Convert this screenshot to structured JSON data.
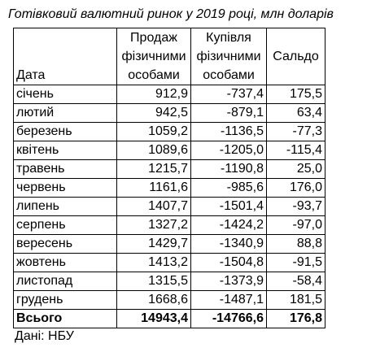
{
  "title": "Готівковий валютний ринок у 2019 році, млн доларів",
  "headers": {
    "date": "Дата",
    "sales": [
      "Продаж",
      "фізичними",
      "особами"
    ],
    "purchases": [
      "Купівля",
      "фізичними",
      "особами"
    ],
    "balance": "Сальдо"
  },
  "rows": [
    {
      "month": "січень",
      "sales": "912,9",
      "purchases": "-737,4",
      "balance": "175,5"
    },
    {
      "month": "лютий",
      "sales": "942,5",
      "purchases": "-879,1",
      "balance": "63,4"
    },
    {
      "month": "березень",
      "sales": "1059,2",
      "purchases": "-1136,5",
      "balance": "-77,3"
    },
    {
      "month": "квітень",
      "sales": "1089,6",
      "purchases": "-1205,0",
      "balance": "-115,4"
    },
    {
      "month": "травень",
      "sales": "1215,7",
      "purchases": "-1190,8",
      "balance": "25,0"
    },
    {
      "month": "червень",
      "sales": "1161,6",
      "purchases": "-985,6",
      "balance": "176,0"
    },
    {
      "month": "липень",
      "sales": "1407,7",
      "purchases": "-1501,4",
      "balance": "-93,7"
    },
    {
      "month": "серпень",
      "sales": "1327,2",
      "purchases": "-1424,2",
      "balance": "-97,0"
    },
    {
      "month": "вересень",
      "sales": "1429,7",
      "purchases": "-1340,9",
      "balance": "88,8"
    },
    {
      "month": "жовтень",
      "sales": "1413,2",
      "purchases": "-1504,8",
      "balance": "-91,5"
    },
    {
      "month": "листопад",
      "sales": "1315,5",
      "purchases": "-1373,9",
      "balance": "-58,4"
    },
    {
      "month": "грудень",
      "sales": "1668,6",
      "purchases": "-1487,1",
      "balance": "181,5"
    }
  ],
  "total": {
    "month": "Всього",
    "sales": "14943,4",
    "purchases": "-14766,6",
    "balance": "176,8"
  },
  "source": "Дані: НБУ"
}
